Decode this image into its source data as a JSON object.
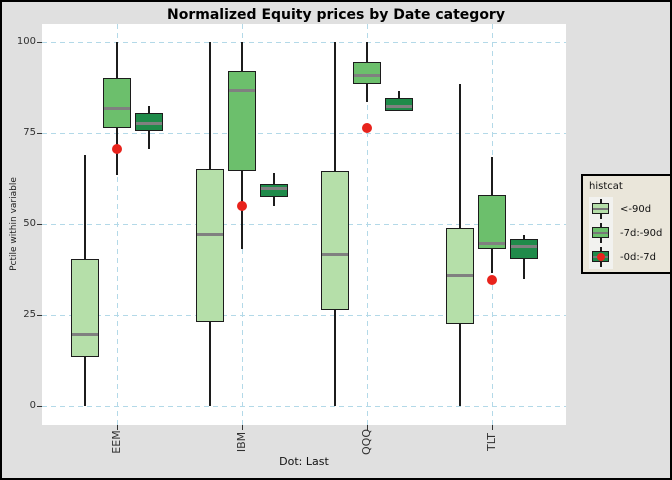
{
  "figure": {
    "title": "Normalized Equity prices by Date category",
    "caption": "Dot: Last"
  },
  "axes": {
    "y_title": "Pctile within variable",
    "y_ticks": [
      0,
      25,
      50,
      75,
      100
    ],
    "x_categories": [
      "EEM",
      "IBM",
      "QQQ",
      "TLT"
    ]
  },
  "legend": {
    "title": "histcat",
    "items": [
      {
        "label": "<-90d",
        "color": "#b5dfa9",
        "dot": false
      },
      {
        "label": "-7d:-90d",
        "color": "#6cbf6c",
        "dot": false
      },
      {
        "label": "-0d:-7d",
        "color": "#1f8b4a",
        "dot": true
      }
    ],
    "dot_color": "#e8231c"
  },
  "colors": {
    "grid": "#b3d9e8",
    "median": "#808080",
    "box_border": "#1c1c1c",
    "figure_bg": "#e0e0e0",
    "panel_bg": "#ffffff",
    "legend_bg": "#eae6da",
    "legend_key_bg": "#f2f2ef",
    "last_dot": "#e8231c"
  },
  "chart_data": {
    "type": "boxplot",
    "title": "Normalized Equity prices by Date category",
    "xlabel": "Dot: Last",
    "ylabel": "Pctile within variable",
    "ylim": [
      0,
      100
    ],
    "grid": "dashed light-blue horizontal at y ticks and vertical at category centers",
    "legend_position": "right",
    "legend_title": "histcat",
    "categories": [
      "EEM",
      "IBM",
      "QQQ",
      "TLT"
    ],
    "series": [
      {
        "name": "<-90d",
        "color": "#b5dfa9",
        "boxes": [
          {
            "category": "EEM",
            "min": 0,
            "q1": 13.5,
            "median": 20,
            "q3": 40.5,
            "max": 69
          },
          {
            "category": "IBM",
            "min": 0,
            "q1": 23,
            "median": 47.5,
            "q3": 65,
            "max": 100
          },
          {
            "category": "QQQ",
            "min": 0,
            "q1": 26.5,
            "median": 42,
            "q3": 64.5,
            "max": 100
          },
          {
            "category": "TLT",
            "min": 0,
            "q1": 22.5,
            "median": 36,
            "q3": 49,
            "max": 88.5
          }
        ]
      },
      {
        "name": "-7d:-90d",
        "color": "#6cbf6c",
        "boxes": [
          {
            "category": "EEM",
            "min": 63.5,
            "q1": 76.5,
            "median": 82,
            "q3": 90,
            "max": 100
          },
          {
            "category": "IBM",
            "min": 43,
            "q1": 64.5,
            "median": 87,
            "q3": 92,
            "max": 100
          },
          {
            "category": "QQQ",
            "min": 83.5,
            "q1": 88.5,
            "median": 91,
            "q3": 94.5,
            "max": 100
          },
          {
            "category": "TLT",
            "min": 36.5,
            "q1": 43,
            "median": 45,
            "q3": 58,
            "max": 68.5
          }
        ]
      },
      {
        "name": "-0d:-7d",
        "color": "#1f8b4a",
        "boxes": [
          {
            "category": "EEM",
            "min": 70.5,
            "q1": 75.5,
            "median": 78,
            "q3": 80.5,
            "max": 82.5
          },
          {
            "category": "IBM",
            "min": 55,
            "q1": 57.5,
            "median": 60,
            "q3": 61,
            "max": 64
          },
          {
            "category": "QQQ",
            "min": 81,
            "q1": 81,
            "median": 82.5,
            "q3": 84.5,
            "max": 86.5
          },
          {
            "category": "TLT",
            "min": 35,
            "q1": 40.5,
            "median": 44,
            "q3": 46,
            "max": 47
          }
        ]
      }
    ],
    "points": {
      "name": "Last",
      "color": "#e8231c",
      "values": [
        70.5,
        55,
        76.5,
        34.5
      ]
    }
  }
}
